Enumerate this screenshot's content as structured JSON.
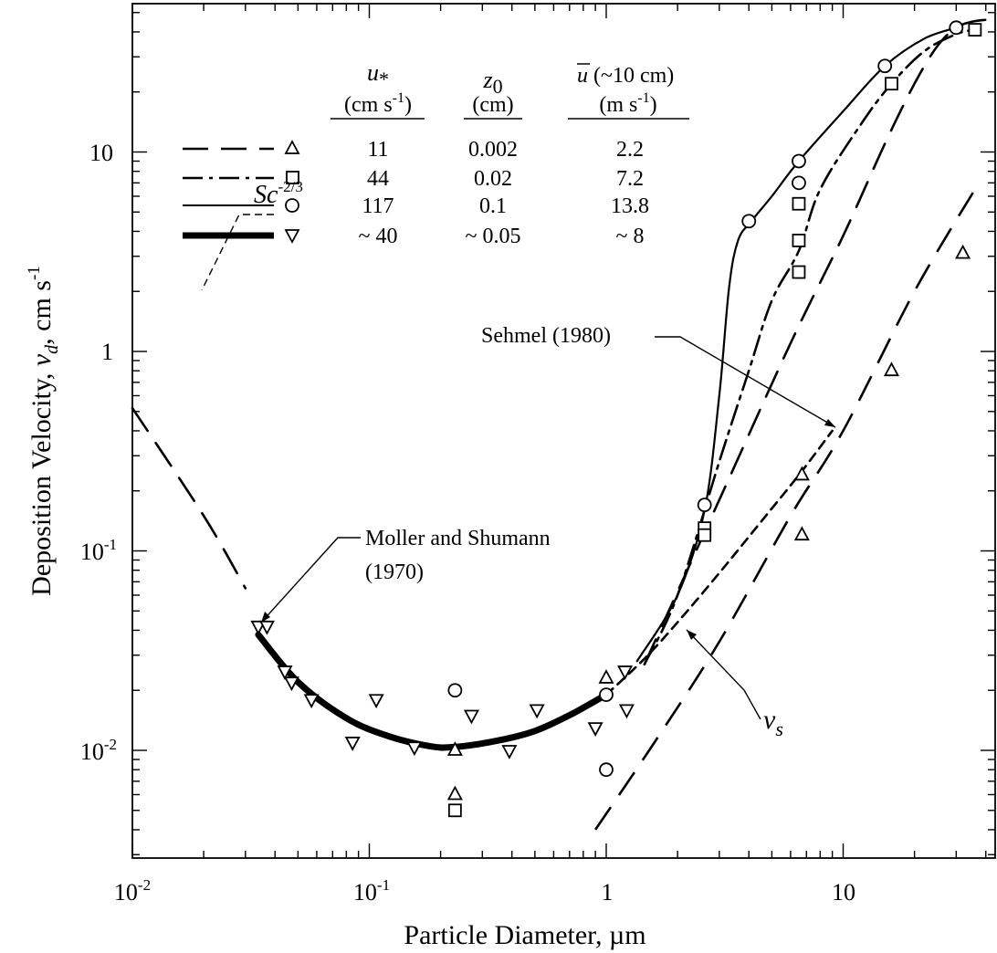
{
  "chart_data": {
    "type": "scatter",
    "xlabel": "Particle   Diameter, µm",
    "ylabel": "Deposition   Velocity,",
    "ylabel_symbol": "v",
    "ylabel_subscript": "d",
    "ylabel_unit": ", cm s",
    "ylabel_unit_exp": "-1",
    "x_scale": "log",
    "y_scale": "log",
    "xlim": [
      0.01,
      40
    ],
    "ylim": [
      0.003,
      60
    ],
    "x_ticks": [
      {
        "value": 0.01,
        "base": "10",
        "exp": "-2"
      },
      {
        "value": 0.1,
        "base": "10",
        "exp": "-1"
      },
      {
        "value": 1,
        "base": "1",
        "exp": ""
      },
      {
        "value": 10,
        "base": "10",
        "exp": ""
      }
    ],
    "y_ticks": [
      {
        "value": 0.01,
        "base": "10",
        "exp": "-2"
      },
      {
        "value": 0.1,
        "base": "10",
        "exp": "-1"
      },
      {
        "value": 1,
        "base": "1",
        "exp": ""
      },
      {
        "value": 10,
        "base": "10",
        "exp": ""
      }
    ],
    "legend": {
      "placement": "top-left",
      "headers": [
        {
          "symbol": "u",
          "sub": "*",
          "unit": "(cm s",
          "unit_exp": "-1",
          "unit_end": ")"
        },
        {
          "symbol": "z",
          "sub": "0",
          "unit": "(cm)",
          "unit_exp": "",
          "unit_end": ""
        },
        {
          "symbol": "u",
          "sub": "",
          "overbar": true,
          "suffix": " (~10 cm)",
          "unit": "(m s",
          "unit_exp": "-1",
          "unit_end": ")"
        }
      ],
      "rows": [
        {
          "line": "dashed",
          "marker": "triangle",
          "ustar": "11",
          "z0": "0.002",
          "ubar": "2.2"
        },
        {
          "line": "dashdot",
          "marker": "square",
          "ustar": "44",
          "z0": "0.02",
          "ubar": "7.2"
        },
        {
          "line": "solid",
          "marker": "circle",
          "ustar": "117",
          "z0": "0.1",
          "ubar": "13.8"
        },
        {
          "line": "thick",
          "marker": "triangle-down",
          "ustar": "~ 40",
          "z0": "~ 0.05",
          "ubar": "~ 8"
        }
      ]
    },
    "series": [
      {
        "style": "dashed",
        "marker": "triangle",
        "curve": [
          [
            0.01,
            0.52
          ],
          [
            0.02,
            0.15
          ],
          [
            0.03,
            0.065
          ]
        ],
        "curve2": [
          [
            1.45,
            0.027
          ],
          [
            3,
            0.18
          ],
          [
            6,
            1.1
          ],
          [
            10,
            3.8
          ],
          [
            15,
            11
          ],
          [
            20,
            22
          ],
          [
            25,
            34
          ],
          [
            30,
            42
          ],
          [
            35,
            45
          ],
          [
            40,
            46
          ]
        ],
        "points": [
          [
            1,
            0.023
          ],
          [
            0.23,
            0.01
          ],
          [
            0.23,
            0.006
          ],
          [
            6.7,
            0.24
          ],
          [
            6.7,
            0.12
          ],
          [
            16,
            0.8
          ],
          [
            32,
            3.1
          ]
        ]
      },
      {
        "style": "dashdot",
        "marker": "square",
        "curve": [
          [
            1.45,
            0.027
          ],
          [
            2,
            0.06
          ],
          [
            3,
            0.28
          ],
          [
            4,
            0.8
          ],
          [
            5,
            1.8
          ],
          [
            6.5,
            3.2
          ],
          [
            8,
            6.5
          ],
          [
            12,
            14
          ],
          [
            16,
            22
          ],
          [
            22,
            32
          ],
          [
            30,
            39
          ],
          [
            36,
            41
          ]
        ],
        "points": [
          [
            0.23,
            0.005
          ],
          [
            2.6,
            0.13
          ],
          [
            2.6,
            0.12
          ],
          [
            6.5,
            5.5
          ],
          [
            6.5,
            3.6
          ],
          [
            6.5,
            2.5
          ],
          [
            16,
            22
          ],
          [
            36,
            41
          ]
        ]
      },
      {
        "style": "solid",
        "marker": "circle",
        "curve": [
          [
            1.35,
            0.028
          ],
          [
            2,
            0.06
          ],
          [
            2.6,
            0.16
          ],
          [
            3,
            0.6
          ],
          [
            3.3,
            2.1
          ],
          [
            3.6,
            3.6
          ],
          [
            4.1,
            4.5
          ],
          [
            5,
            6
          ],
          [
            6.5,
            9
          ],
          [
            10,
            16
          ],
          [
            15,
            27
          ],
          [
            22,
            37
          ],
          [
            30,
            42
          ]
        ],
        "points": [
          [
            0.23,
            0.02
          ],
          [
            1,
            0.019
          ],
          [
            1,
            0.008
          ],
          [
            2.6,
            0.17
          ],
          [
            4,
            4.5
          ],
          [
            6.5,
            9
          ],
          [
            6.5,
            7
          ],
          [
            15,
            27
          ],
          [
            30,
            42
          ]
        ]
      },
      {
        "style": "thick",
        "marker": "triangle-down",
        "curve": [
          [
            0.034,
            0.038
          ],
          [
            0.05,
            0.022
          ],
          [
            0.08,
            0.0145
          ],
          [
            0.12,
            0.0118
          ],
          [
            0.18,
            0.0105
          ],
          [
            0.23,
            0.0104
          ],
          [
            0.35,
            0.0112
          ],
          [
            0.5,
            0.0125
          ],
          [
            0.7,
            0.015
          ],
          [
            1,
            0.019
          ]
        ],
        "points": [
          [
            0.034,
            0.042
          ],
          [
            0.037,
            0.042
          ],
          [
            0.044,
            0.025
          ],
          [
            0.047,
            0.022
          ],
          [
            0.057,
            0.018
          ],
          [
            0.085,
            0.011
          ],
          [
            0.107,
            0.018
          ],
          [
            0.155,
            0.0104
          ],
          [
            0.27,
            0.015
          ],
          [
            0.39,
            0.01
          ],
          [
            0.51,
            0.016
          ],
          [
            0.9,
            0.013
          ],
          [
            1.2,
            0.025
          ],
          [
            1.22,
            0.016
          ]
        ]
      },
      {
        "style": "short-dash",
        "marker": "",
        "curve": [
          [
            1,
            0.019
          ],
          [
            1.5,
            0.03
          ],
          [
            2.2,
            0.05
          ],
          [
            3.2,
            0.085
          ],
          [
            4.5,
            0.14
          ],
          [
            6.5,
            0.24
          ],
          [
            9,
            0.4
          ]
        ],
        "points": []
      }
    ],
    "vs_line": [
      [
        0.9,
        0.004
      ],
      [
        1.6,
        0.011
      ],
      [
        3,
        0.035
      ],
      [
        6,
        0.15
      ],
      [
        10,
        0.4
      ],
      [
        20,
        2
      ],
      [
        36,
        6.5
      ]
    ],
    "annotations": [
      {
        "text_base": "Sc",
        "text_exp": "-2/3"
      },
      {
        "line1": "Moller and Shumann",
        "line2": "(1970)"
      },
      {
        "text": "Sehmel (1980)"
      },
      {
        "text_symbol": "v",
        "text_sub": "s"
      }
    ]
  }
}
